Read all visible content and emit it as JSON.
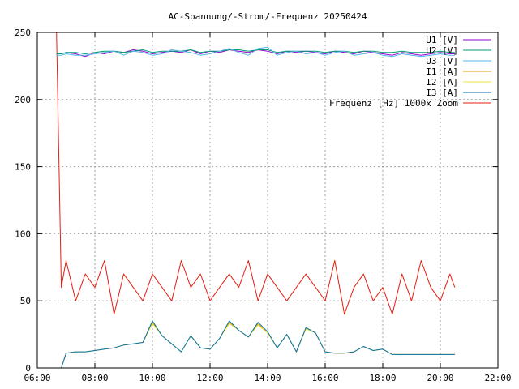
{
  "chart_data": {
    "type": "line",
    "title": "AC-Spannung/-Strom/-Frequenz 20250424",
    "xlabel": "",
    "ylabel": "",
    "xlim": [
      "06:00",
      "22:00"
    ],
    "ylim": [
      0,
      250
    ],
    "grid": true,
    "legend_position": "top-right",
    "x_ticks": [
      "06:00",
      "08:00",
      "10:00",
      "12:00",
      "14:00",
      "16:00",
      "18:00",
      "20:00",
      "22:00"
    ],
    "y_ticks": [
      "0",
      "50",
      "100",
      "150",
      "200",
      "250"
    ],
    "x": [
      "06:40",
      "06:50",
      "07:00",
      "07:20",
      "07:40",
      "08:00",
      "08:20",
      "08:40",
      "09:00",
      "09:20",
      "09:40",
      "10:00",
      "10:20",
      "10:40",
      "11:00",
      "11:20",
      "11:40",
      "12:00",
      "12:20",
      "12:40",
      "13:00",
      "13:20",
      "13:40",
      "14:00",
      "14:20",
      "14:40",
      "15:00",
      "15:20",
      "15:40",
      "16:00",
      "16:20",
      "16:40",
      "17:00",
      "17:20",
      "17:40",
      "18:00",
      "18:20",
      "18:40",
      "19:00",
      "19:20",
      "19:40",
      "20:00",
      "20:20",
      "20:30"
    ],
    "series": [
      {
        "name": "U1 [V]",
        "color": "#9400d3",
        "values": [
          234,
          234,
          235,
          234,
          232,
          235,
          234,
          236,
          235,
          237,
          236,
          234,
          235,
          236,
          235,
          237,
          234,
          236,
          235,
          237,
          236,
          235,
          237,
          236,
          234,
          236,
          235,
          236,
          235,
          234,
          236,
          235,
          234,
          236,
          235,
          234,
          233,
          235,
          234,
          233,
          234,
          235,
          234,
          234
        ]
      },
      {
        "name": "U2 [V]",
        "color": "#009e73",
        "values": [
          234,
          234,
          235,
          235,
          234,
          235,
          236,
          236,
          235,
          236,
          237,
          235,
          236,
          236,
          236,
          237,
          235,
          236,
          236,
          237,
          237,
          236,
          237,
          237,
          235,
          236,
          236,
          236,
          236,
          235,
          236,
          236,
          235,
          236,
          236,
          235,
          235,
          236,
          235,
          235,
          235,
          236,
          235,
          235
        ]
      },
      {
        "name": "U3 [V]",
        "color": "#56b4e9",
        "values": [
          233,
          233,
          234,
          233,
          233,
          234,
          235,
          236,
          233,
          236,
          235,
          233,
          234,
          237,
          236,
          235,
          233,
          234,
          236,
          238,
          235,
          233,
          238,
          239,
          233,
          235,
          236,
          234,
          235,
          233,
          235,
          236,
          233,
          234,
          235,
          233,
          232,
          234,
          233,
          232,
          233,
          234,
          233,
          233
        ]
      },
      {
        "name": "I1 [A]",
        "color": "#e69f00",
        "values": [
          0,
          0,
          11,
          12,
          12,
          13,
          14,
          15,
          17,
          18,
          19,
          34,
          24,
          18,
          12,
          24,
          15,
          14,
          22,
          34,
          28,
          23,
          33,
          26,
          15,
          25,
          12,
          30,
          26,
          12,
          11,
          11,
          12,
          16,
          13,
          14,
          10,
          10,
          10,
          10,
          10,
          10,
          10,
          10
        ]
      },
      {
        "name": "I2 [A]",
        "color": "#f0e442",
        "values": [
          0,
          0,
          11,
          12,
          12,
          13,
          14,
          15,
          17,
          18,
          19,
          33,
          24,
          18,
          12,
          24,
          15,
          14,
          22,
          33,
          28,
          23,
          32,
          26,
          15,
          25,
          12,
          29,
          26,
          12,
          11,
          11,
          12,
          16,
          13,
          14,
          10,
          10,
          10,
          10,
          10,
          10,
          10,
          10
        ]
      },
      {
        "name": "I3 [A]",
        "color": "#0072b2",
        "values": [
          0,
          0,
          11,
          12,
          12,
          13,
          14,
          15,
          17,
          18,
          19,
          35,
          24,
          18,
          12,
          24,
          15,
          14,
          22,
          35,
          28,
          23,
          34,
          27,
          15,
          25,
          12,
          30,
          26,
          12,
          11,
          11,
          12,
          16,
          13,
          14,
          10,
          10,
          10,
          10,
          10,
          10,
          10,
          10
        ]
      },
      {
        "name": "Frequenz [Hz] 1000x Zoom",
        "color": "#e51e10",
        "values": [
          250,
          60,
          80,
          50,
          70,
          60,
          80,
          40,
          70,
          60,
          50,
          70,
          60,
          50,
          80,
          60,
          70,
          50,
          60,
          70,
          60,
          80,
          50,
          70,
          60,
          50,
          60,
          70,
          60,
          50,
          80,
          40,
          60,
          70,
          50,
          60,
          40,
          70,
          50,
          80,
          60,
          50,
          70,
          60
        ]
      }
    ]
  }
}
